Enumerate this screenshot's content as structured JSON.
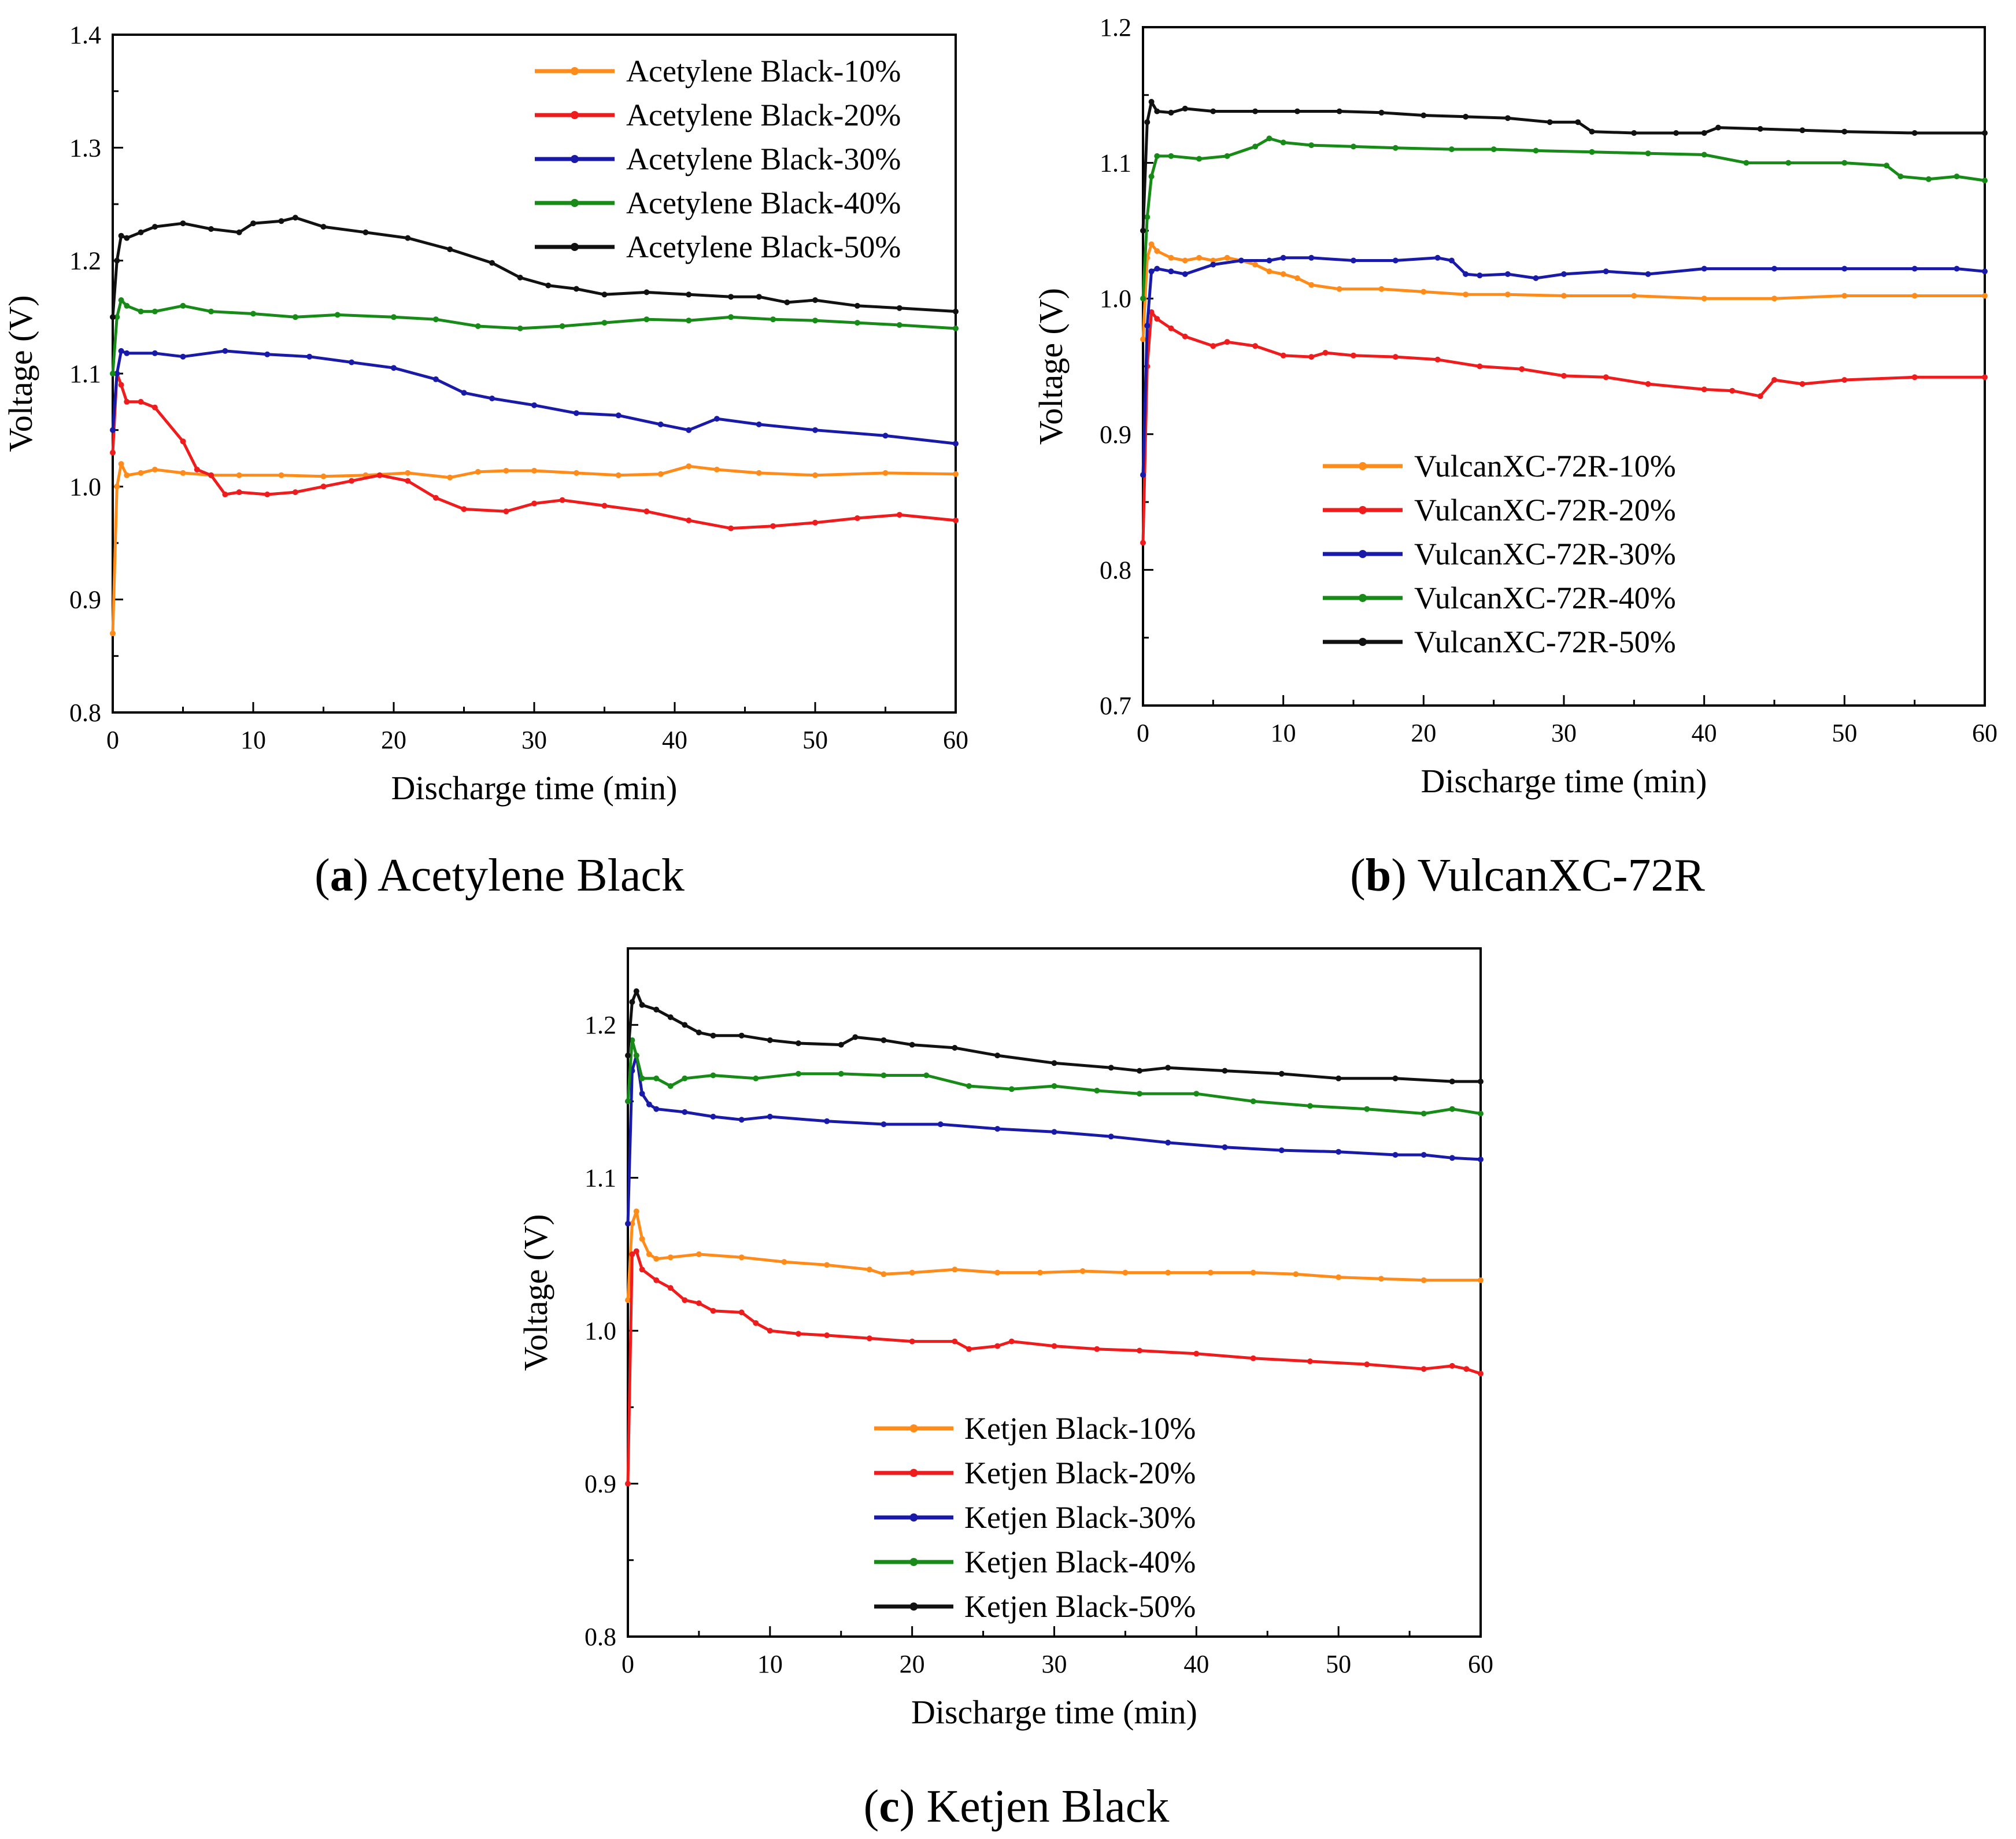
{
  "chart_data": [
    {
      "id": "a",
      "type": "line",
      "caption_letter": "a",
      "caption_text": "Acetylene Black",
      "xlabel": "Discharge time (min)",
      "ylabel": "Voltage (V)",
      "xlim": [
        0,
        60
      ],
      "ylim": [
        0.8,
        1.4
      ],
      "xticks": [
        "0",
        "10",
        "20",
        "30",
        "40",
        "50",
        "60"
      ],
      "yticks": [
        "0.8",
        "0.9",
        "1.0",
        "1.1",
        "1.2",
        "1.3",
        "1.4"
      ],
      "legend_position": "top-right",
      "series": [
        {
          "name": "Acetylene Black-10%",
          "color": "#ff8c1a",
          "x": [
            0,
            0.3,
            0.6,
            1,
            2,
            3,
            5,
            7,
            9,
            12,
            15,
            18,
            21,
            24,
            26,
            28,
            30,
            33,
            36,
            39,
            41,
            43,
            46,
            50,
            55,
            60
          ],
          "y": [
            0.87,
            1.0,
            1.02,
            1.01,
            1.012,
            1.015,
            1.012,
            1.01,
            1.01,
            1.01,
            1.009,
            1.01,
            1.012,
            1.008,
            1.013,
            1.014,
            1.014,
            1.012,
            1.01,
            1.011,
            1.018,
            1.015,
            1.012,
            1.01,
            1.012,
            1.011
          ]
        },
        {
          "name": "Acetylene Black-20%",
          "color": "#ee1c1c",
          "x": [
            0,
            0.3,
            0.6,
            1,
            2,
            3,
            5,
            6,
            7,
            8,
            9,
            11,
            13,
            15,
            17,
            19,
            21,
            23,
            25,
            28,
            30,
            32,
            35,
            38,
            41,
            44,
            47,
            50,
            53,
            56,
            60
          ],
          "y": [
            1.03,
            1.1,
            1.09,
            1.075,
            1.075,
            1.07,
            1.04,
            1.015,
            1.01,
            0.993,
            0.995,
            0.993,
            0.995,
            1.0,
            1.005,
            1.01,
            1.005,
            0.99,
            0.98,
            0.978,
            0.985,
            0.988,
            0.983,
            0.978,
            0.97,
            0.963,
            0.965,
            0.968,
            0.972,
            0.975,
            0.97
          ]
        },
        {
          "name": "Acetylene Black-30%",
          "color": "#1a1aa8",
          "x": [
            0,
            0.3,
            0.6,
            1,
            3,
            5,
            8,
            11,
            14,
            17,
            20,
            23,
            25,
            27,
            30,
            33,
            36,
            39,
            41,
            43,
            46,
            50,
            55,
            60
          ],
          "y": [
            1.05,
            1.1,
            1.12,
            1.118,
            1.118,
            1.115,
            1.12,
            1.117,
            1.115,
            1.11,
            1.105,
            1.095,
            1.083,
            1.078,
            1.072,
            1.065,
            1.063,
            1.055,
            1.05,
            1.06,
            1.055,
            1.05,
            1.045,
            1.038
          ]
        },
        {
          "name": "Acetylene Black-40%",
          "color": "#178a17",
          "x": [
            0,
            0.3,
            0.6,
            1,
            2,
            3,
            5,
            7,
            10,
            13,
            16,
            20,
            23,
            26,
            29,
            32,
            35,
            38,
            41,
            44,
            47,
            50,
            53,
            56,
            60
          ],
          "y": [
            1.1,
            1.15,
            1.165,
            1.16,
            1.155,
            1.155,
            1.16,
            1.155,
            1.153,
            1.15,
            1.152,
            1.15,
            1.148,
            1.142,
            1.14,
            1.142,
            1.145,
            1.148,
            1.147,
            1.15,
            1.148,
            1.147,
            1.145,
            1.143,
            1.14
          ]
        },
        {
          "name": "Acetylene Black-50%",
          "color": "#111111",
          "x": [
            0,
            0.3,
            0.6,
            1,
            2,
            3,
            5,
            7,
            9,
            10,
            12,
            13,
            15,
            18,
            21,
            24,
            27,
            29,
            31,
            33,
            35,
            38,
            41,
            44,
            46,
            48,
            50,
            53,
            56,
            60
          ],
          "y": [
            1.15,
            1.2,
            1.222,
            1.22,
            1.225,
            1.23,
            1.233,
            1.228,
            1.225,
            1.233,
            1.235,
            1.238,
            1.23,
            1.225,
            1.22,
            1.21,
            1.198,
            1.185,
            1.178,
            1.175,
            1.17,
            1.172,
            1.17,
            1.168,
            1.168,
            1.163,
            1.165,
            1.16,
            1.158,
            1.155
          ]
        }
      ]
    },
    {
      "id": "b",
      "type": "line",
      "caption_letter": "b",
      "caption_text": "VulcanXC-72R",
      "xlabel": "Discharge time (min)",
      "ylabel": "Voltage (V)",
      "xlim": [
        0,
        60
      ],
      "ylim": [
        0.7,
        1.2
      ],
      "xticks": [
        "0",
        "10",
        "20",
        "30",
        "40",
        "50",
        "60"
      ],
      "yticks": [
        "0.7",
        "0.8",
        "0.9",
        "1.0",
        "1.1",
        "1.2"
      ],
      "legend_position": "lower-center",
      "series": [
        {
          "name": "VulcanXC-72R-10%",
          "color": "#ff8c1a",
          "x": [
            0,
            0.3,
            0.6,
            1,
            2,
            3,
            4,
            5,
            6,
            7,
            8,
            9,
            10,
            11,
            12,
            14,
            17,
            20,
            23,
            26,
            30,
            35,
            40,
            45,
            50,
            55,
            60
          ],
          "y": [
            0.97,
            1.03,
            1.04,
            1.035,
            1.03,
            1.028,
            1.03,
            1.028,
            1.03,
            1.028,
            1.025,
            1.02,
            1.018,
            1.015,
            1.01,
            1.007,
            1.007,
            1.005,
            1.003,
            1.003,
            1.002,
            1.002,
            1.0,
            1.0,
            1.002,
            1.002,
            1.002
          ]
        },
        {
          "name": "VulcanXC-72R-20%",
          "color": "#ee1c1c",
          "x": [
            0,
            0.3,
            0.6,
            1,
            2,
            3,
            5,
            6,
            8,
            10,
            12,
            13,
            15,
            18,
            21,
            24,
            27,
            30,
            33,
            36,
            40,
            42,
            44,
            45,
            47,
            50,
            55,
            60
          ],
          "y": [
            0.82,
            0.95,
            0.99,
            0.985,
            0.978,
            0.972,
            0.965,
            0.968,
            0.965,
            0.958,
            0.957,
            0.96,
            0.958,
            0.957,
            0.955,
            0.95,
            0.948,
            0.943,
            0.942,
            0.937,
            0.933,
            0.932,
            0.928,
            0.94,
            0.937,
            0.94,
            0.942,
            0.942
          ]
        },
        {
          "name": "VulcanXC-72R-30%",
          "color": "#1a1aa8",
          "x": [
            0,
            0.3,
            0.6,
            1,
            2,
            3,
            5,
            7,
            9,
            10,
            12,
            15,
            18,
            21,
            22,
            23,
            24,
            26,
            28,
            30,
            33,
            36,
            40,
            45,
            50,
            55,
            58,
            60
          ],
          "y": [
            0.87,
            0.98,
            1.02,
            1.022,
            1.02,
            1.018,
            1.025,
            1.028,
            1.028,
            1.03,
            1.03,
            1.028,
            1.028,
            1.03,
            1.028,
            1.018,
            1.017,
            1.018,
            1.015,
            1.018,
            1.02,
            1.018,
            1.022,
            1.022,
            1.022,
            1.022,
            1.022,
            1.02
          ]
        },
        {
          "name": "VulcanXC-72R-40%",
          "color": "#178a17",
          "x": [
            0,
            0.3,
            0.6,
            1,
            2,
            4,
            6,
            8,
            9,
            10,
            12,
            15,
            18,
            22,
            25,
            28,
            32,
            36,
            40,
            43,
            46,
            50,
            53,
            54,
            56,
            58,
            60
          ],
          "y": [
            1.0,
            1.06,
            1.09,
            1.105,
            1.105,
            1.103,
            1.105,
            1.112,
            1.118,
            1.115,
            1.113,
            1.112,
            1.111,
            1.11,
            1.11,
            1.109,
            1.108,
            1.107,
            1.106,
            1.1,
            1.1,
            1.1,
            1.098,
            1.09,
            1.088,
            1.09,
            1.087
          ]
        },
        {
          "name": "VulcanXC-72R-50%",
          "color": "#111111",
          "x": [
            0,
            0.3,
            0.6,
            1,
            2,
            3,
            5,
            8,
            11,
            14,
            17,
            20,
            23,
            26,
            29,
            31,
            32,
            35,
            38,
            40,
            41,
            44,
            47,
            50,
            55,
            60
          ],
          "y": [
            1.05,
            1.13,
            1.145,
            1.138,
            1.137,
            1.14,
            1.138,
            1.138,
            1.138,
            1.138,
            1.137,
            1.135,
            1.134,
            1.133,
            1.13,
            1.13,
            1.123,
            1.122,
            1.122,
            1.122,
            1.126,
            1.125,
            1.124,
            1.123,
            1.122,
            1.122
          ]
        }
      ]
    },
    {
      "id": "c",
      "type": "line",
      "caption_letter": "c",
      "caption_text": "Ketjen Black",
      "xlabel": "Discharge time (min)",
      "ylabel": "Voltage (V)",
      "xlim": [
        0,
        60
      ],
      "ylim": [
        0.8,
        1.25
      ],
      "xticks": [
        "0",
        "10",
        "20",
        "30",
        "40",
        "50",
        "60"
      ],
      "yticks": [
        "0.8",
        "0.9",
        "1.0",
        "1.1",
        "1.2"
      ],
      "legend_position": "lower-center",
      "series": [
        {
          "name": "Ketjen Black-10%",
          "color": "#ff8c1a",
          "x": [
            0,
            0.3,
            0.6,
            1,
            1.5,
            2,
            3,
            5,
            8,
            11,
            14,
            17,
            18,
            20,
            23,
            26,
            29,
            32,
            35,
            38,
            41,
            44,
            47,
            50,
            53,
            56,
            60
          ],
          "y": [
            1.02,
            1.07,
            1.078,
            1.06,
            1.05,
            1.047,
            1.048,
            1.05,
            1.048,
            1.045,
            1.043,
            1.04,
            1.037,
            1.038,
            1.04,
            1.038,
            1.038,
            1.039,
            1.038,
            1.038,
            1.038,
            1.038,
            1.037,
            1.035,
            1.034,
            1.033,
            1.033
          ]
        },
        {
          "name": "Ketjen Black-20%",
          "color": "#ee1c1c",
          "x": [
            0,
            0.3,
            0.6,
            1,
            2,
            3,
            4,
            5,
            6,
            8,
            9,
            10,
            12,
            14,
            17,
            20,
            23,
            24,
            26,
            27,
            30,
            33,
            36,
            40,
            44,
            48,
            52,
            56,
            58,
            59,
            60
          ],
          "y": [
            0.9,
            1.05,
            1.052,
            1.04,
            1.033,
            1.028,
            1.02,
            1.018,
            1.013,
            1.012,
            1.005,
            1.0,
            0.998,
            0.997,
            0.995,
            0.993,
            0.993,
            0.988,
            0.99,
            0.993,
            0.99,
            0.988,
            0.987,
            0.985,
            0.982,
            0.98,
            0.978,
            0.975,
            0.977,
            0.975,
            0.972
          ]
        },
        {
          "name": "Ketjen Black-30%",
          "color": "#1a1aa8",
          "x": [
            0,
            0.3,
            0.6,
            1,
            1.5,
            2,
            4,
            6,
            8,
            10,
            14,
            18,
            22,
            26,
            30,
            34,
            38,
            42,
            46,
            50,
            54,
            56,
            58,
            60
          ],
          "y": [
            1.07,
            1.17,
            1.18,
            1.155,
            1.148,
            1.145,
            1.143,
            1.14,
            1.138,
            1.14,
            1.137,
            1.135,
            1.135,
            1.132,
            1.13,
            1.127,
            1.123,
            1.12,
            1.118,
            1.117,
            1.115,
            1.115,
            1.113,
            1.112
          ]
        },
        {
          "name": "Ketjen Black-40%",
          "color": "#178a17",
          "x": [
            0,
            0.3,
            0.6,
            1,
            2,
            3,
            4,
            6,
            9,
            12,
            15,
            18,
            21,
            24,
            27,
            30,
            33,
            36,
            40,
            44,
            48,
            52,
            56,
            58,
            60
          ],
          "y": [
            1.15,
            1.19,
            1.18,
            1.165,
            1.165,
            1.16,
            1.165,
            1.167,
            1.165,
            1.168,
            1.168,
            1.167,
            1.167,
            1.16,
            1.158,
            1.16,
            1.157,
            1.155,
            1.155,
            1.15,
            1.147,
            1.145,
            1.142,
            1.145,
            1.142
          ]
        },
        {
          "name": "Ketjen Black-50%",
          "color": "#111111",
          "x": [
            0,
            0.3,
            0.6,
            1,
            2,
            3,
            4,
            5,
            6,
            8,
            10,
            12,
            15,
            16,
            18,
            20,
            23,
            26,
            30,
            34,
            36,
            38,
            42,
            46,
            50,
            54,
            58,
            60
          ],
          "y": [
            1.18,
            1.215,
            1.222,
            1.213,
            1.21,
            1.205,
            1.2,
            1.195,
            1.193,
            1.193,
            1.19,
            1.188,
            1.187,
            1.192,
            1.19,
            1.187,
            1.185,
            1.18,
            1.175,
            1.172,
            1.17,
            1.172,
            1.17,
            1.168,
            1.165,
            1.165,
            1.163,
            1.163
          ]
        }
      ]
    }
  ]
}
